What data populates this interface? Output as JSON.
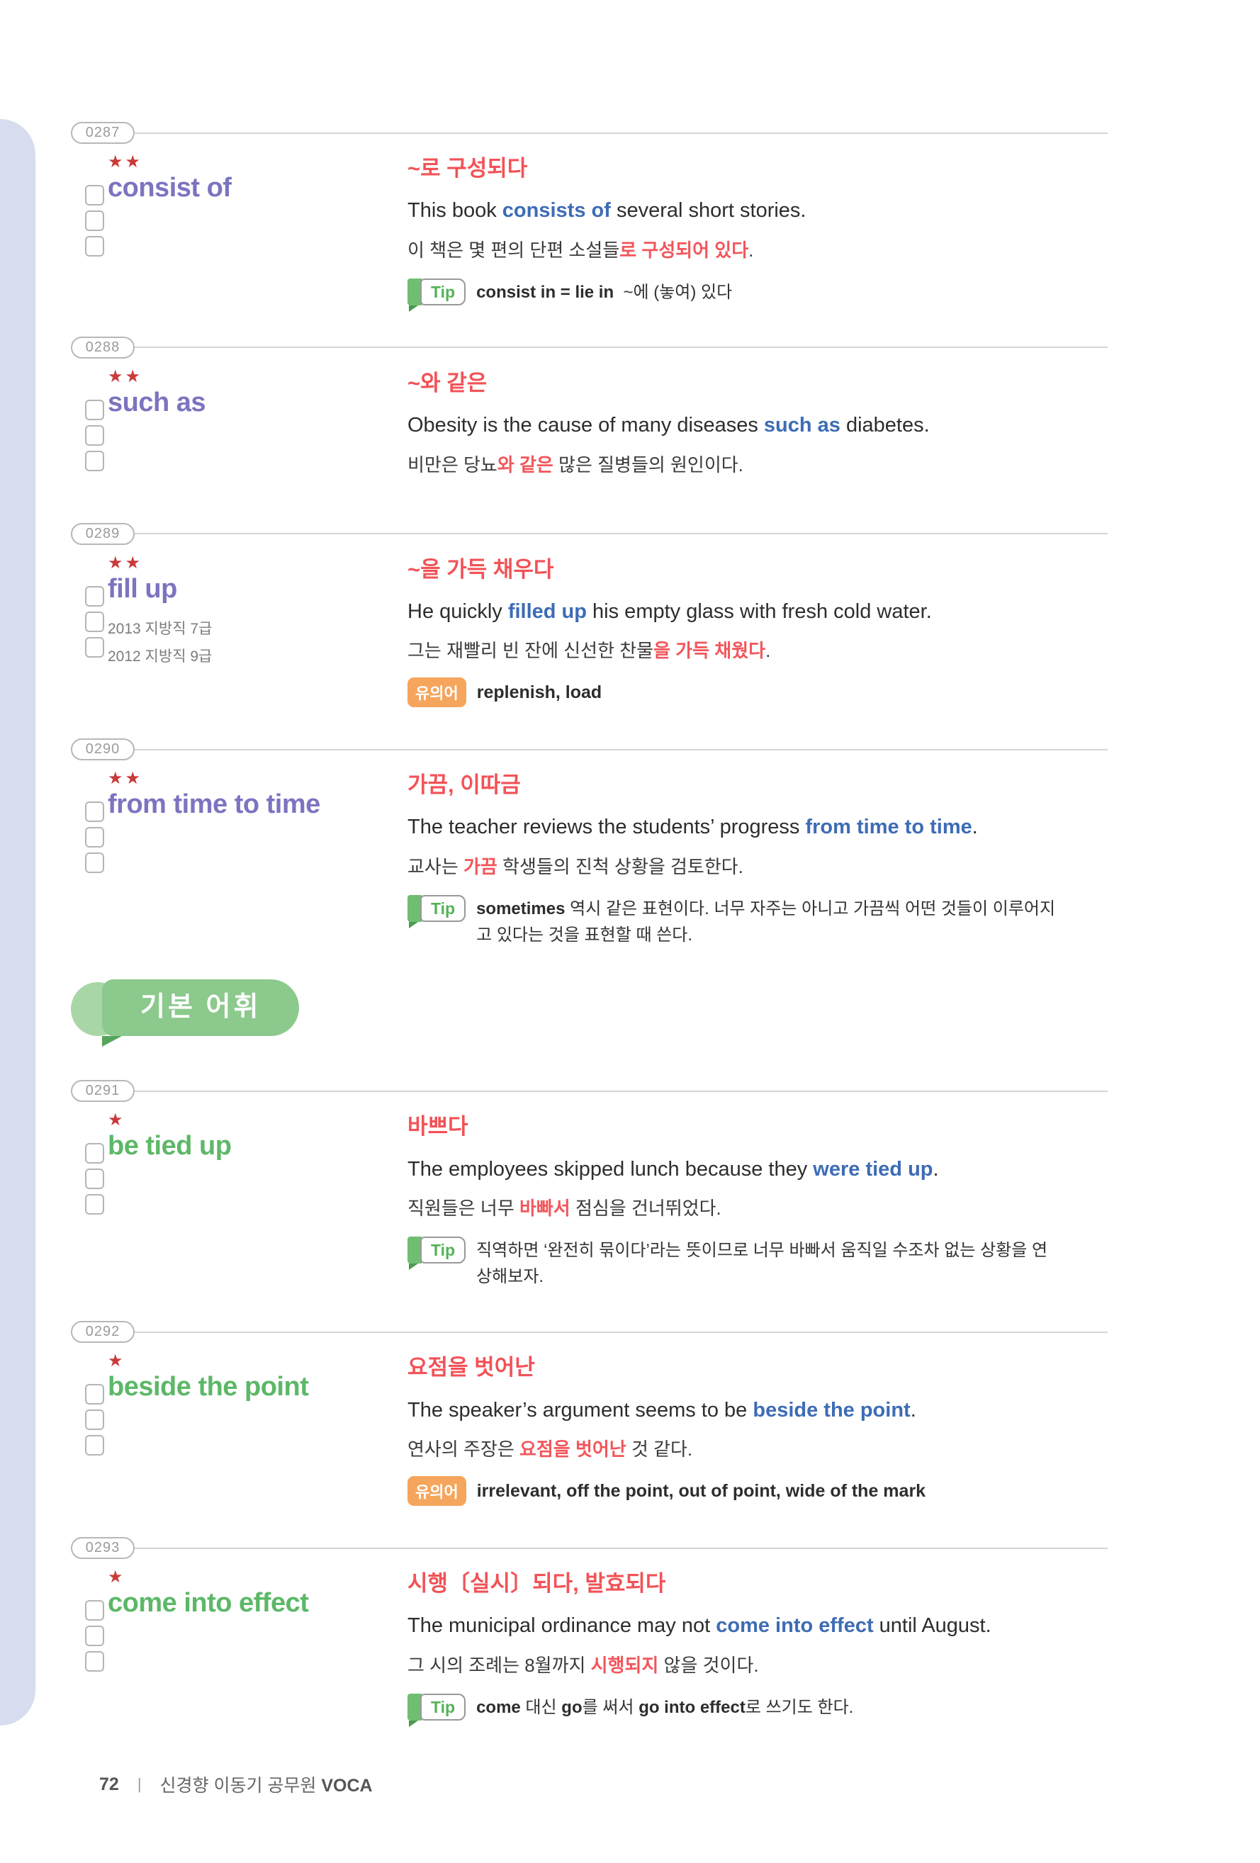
{
  "labels": {
    "tip": "Tip",
    "synonym": "유의어"
  },
  "section": {
    "title": "기본 어휘"
  },
  "footer": {
    "page_number": "72",
    "separator": "|",
    "book_series": "신경향 이동기 공무원 ",
    "book_title_bold": "VOCA"
  },
  "colors": {
    "core_word_purple": "#7b74c0",
    "basic_word_green": "#5cb867",
    "meaning_red": "#f25257",
    "highlight_blue": "#3e6cb5",
    "tip_green": "#6fbe72",
    "synonym_orange": "#f5a55c",
    "section_badge_green": "#8cc98c",
    "side_rail_lavender": "#d7ddef"
  },
  "entries": [
    {
      "id": "0287",
      "stars": "★★",
      "group": "core",
      "word": "consist of",
      "meaning": "~로 구성되다",
      "example": [
        {
          "t": "This book ",
          "s": ""
        },
        {
          "t": "consists of",
          "s": "em"
        },
        {
          "t": " several short stories.",
          "s": ""
        }
      ],
      "translation": [
        {
          "t": "이 책은 몇 편의 단편 소설들",
          "s": ""
        },
        {
          "t": "로 구성되어 있다",
          "s": "key"
        },
        {
          "t": ".",
          "s": ""
        }
      ],
      "tip": [
        {
          "t": "consist in = lie in",
          "s": "bold"
        },
        {
          "t": "  ~에 (놓여) 있다",
          "s": ""
        }
      ]
    },
    {
      "id": "0288",
      "stars": "★★",
      "group": "core",
      "word": "such as",
      "meaning": "~와 같은",
      "example": [
        {
          "t": "Obesity is the cause of many diseases ",
          "s": ""
        },
        {
          "t": "such as",
          "s": "em"
        },
        {
          "t": " diabetes.",
          "s": ""
        }
      ],
      "translation": [
        {
          "t": "비만은 당뇨",
          "s": ""
        },
        {
          "t": "와 같은",
          "s": "key"
        },
        {
          "t": " 많은 질병들의 원인이다.",
          "s": ""
        }
      ]
    },
    {
      "id": "0289",
      "stars": "★★",
      "group": "core",
      "word": "fill up",
      "sources": [
        "2013 지방직 7급",
        "2012 지방직 9급"
      ],
      "meaning": "~을 가득 채우다",
      "example": [
        {
          "t": "He quickly ",
          "s": ""
        },
        {
          "t": "filled up",
          "s": "em"
        },
        {
          "t": " his empty glass with fresh cold water.",
          "s": ""
        }
      ],
      "translation": [
        {
          "t": "그는 재빨리 빈 잔에 신선한 찬물",
          "s": ""
        },
        {
          "t": "을 가득 채웠다",
          "s": "key"
        },
        {
          "t": ".",
          "s": ""
        }
      ],
      "synonyms": [
        {
          "t": "replenish, load",
          "s": "bold"
        }
      ]
    },
    {
      "id": "0290",
      "stars": "★★",
      "group": "core",
      "word": "from time to time",
      "meaning": "가끔, 이따금",
      "example": [
        {
          "t": "The teacher reviews the students’ progress ",
          "s": ""
        },
        {
          "t": "from time to time",
          "s": "em"
        },
        {
          "t": ".",
          "s": ""
        }
      ],
      "translation": [
        {
          "t": "교사는 ",
          "s": ""
        },
        {
          "t": "가끔",
          "s": "key"
        },
        {
          "t": " 학생들의 진척 상황을 검토한다.",
          "s": ""
        }
      ],
      "tip": [
        {
          "t": "sometimes",
          "s": "bold"
        },
        {
          "t": " 역시 같은 표현이다. 너무 자주는 아니고 가끔씩 어떤 것들이 이루어지고 있다는 것을 표현할 때 쓴다.",
          "s": ""
        }
      ]
    },
    {
      "id": "0291",
      "stars": "★",
      "group": "basic",
      "word": "be tied up",
      "meaning": "바쁘다",
      "example": [
        {
          "t": "The employees skipped lunch because they ",
          "s": ""
        },
        {
          "t": "were tied up",
          "s": "em"
        },
        {
          "t": ".",
          "s": ""
        }
      ],
      "translation": [
        {
          "t": "직원들은 너무 ",
          "s": ""
        },
        {
          "t": "바빠서",
          "s": "key"
        },
        {
          "t": " 점심을 건너뛰었다.",
          "s": ""
        }
      ],
      "tip": [
        {
          "t": "직역하면 ‘완전히 묶이다’라는 뜻이므로 너무 바빠서 움직일 수조차 없는 상황을 연상해보자.",
          "s": ""
        }
      ]
    },
    {
      "id": "0292",
      "stars": "★",
      "group": "basic",
      "word": "beside the point",
      "meaning": "요점을 벗어난",
      "example": [
        {
          "t": "The speaker’s argument seems to be ",
          "s": ""
        },
        {
          "t": "beside the point",
          "s": "em"
        },
        {
          "t": ".",
          "s": ""
        }
      ],
      "translation": [
        {
          "t": "연사의 주장은 ",
          "s": ""
        },
        {
          "t": "요점을 벗어난",
          "s": "key"
        },
        {
          "t": " 것 같다.",
          "s": ""
        }
      ],
      "synonyms": [
        {
          "t": "irrelevant, off the point, out of point, wide of the mark",
          "s": "bold"
        }
      ]
    },
    {
      "id": "0293",
      "stars": "★",
      "group": "basic",
      "word": "come into effect",
      "meaning": "시행〔실시〕되다, 발효되다",
      "example": [
        {
          "t": "The municipal ordinance may not ",
          "s": ""
        },
        {
          "t": "come into effect",
          "s": "em"
        },
        {
          "t": " until August.",
          "s": ""
        }
      ],
      "translation": [
        {
          "t": "그 시의 조례는 8월까지 ",
          "s": ""
        },
        {
          "t": "시행되지",
          "s": "key"
        },
        {
          "t": " 않을 것이다.",
          "s": ""
        }
      ],
      "tip": [
        {
          "t": "come",
          "s": "bold"
        },
        {
          "t": " 대신 ",
          "s": ""
        },
        {
          "t": "go",
          "s": "bold"
        },
        {
          "t": "를 써서 ",
          "s": ""
        },
        {
          "t": "go into effect",
          "s": "bold"
        },
        {
          "t": "로 쓰기도 한다.",
          "s": ""
        }
      ]
    }
  ]
}
